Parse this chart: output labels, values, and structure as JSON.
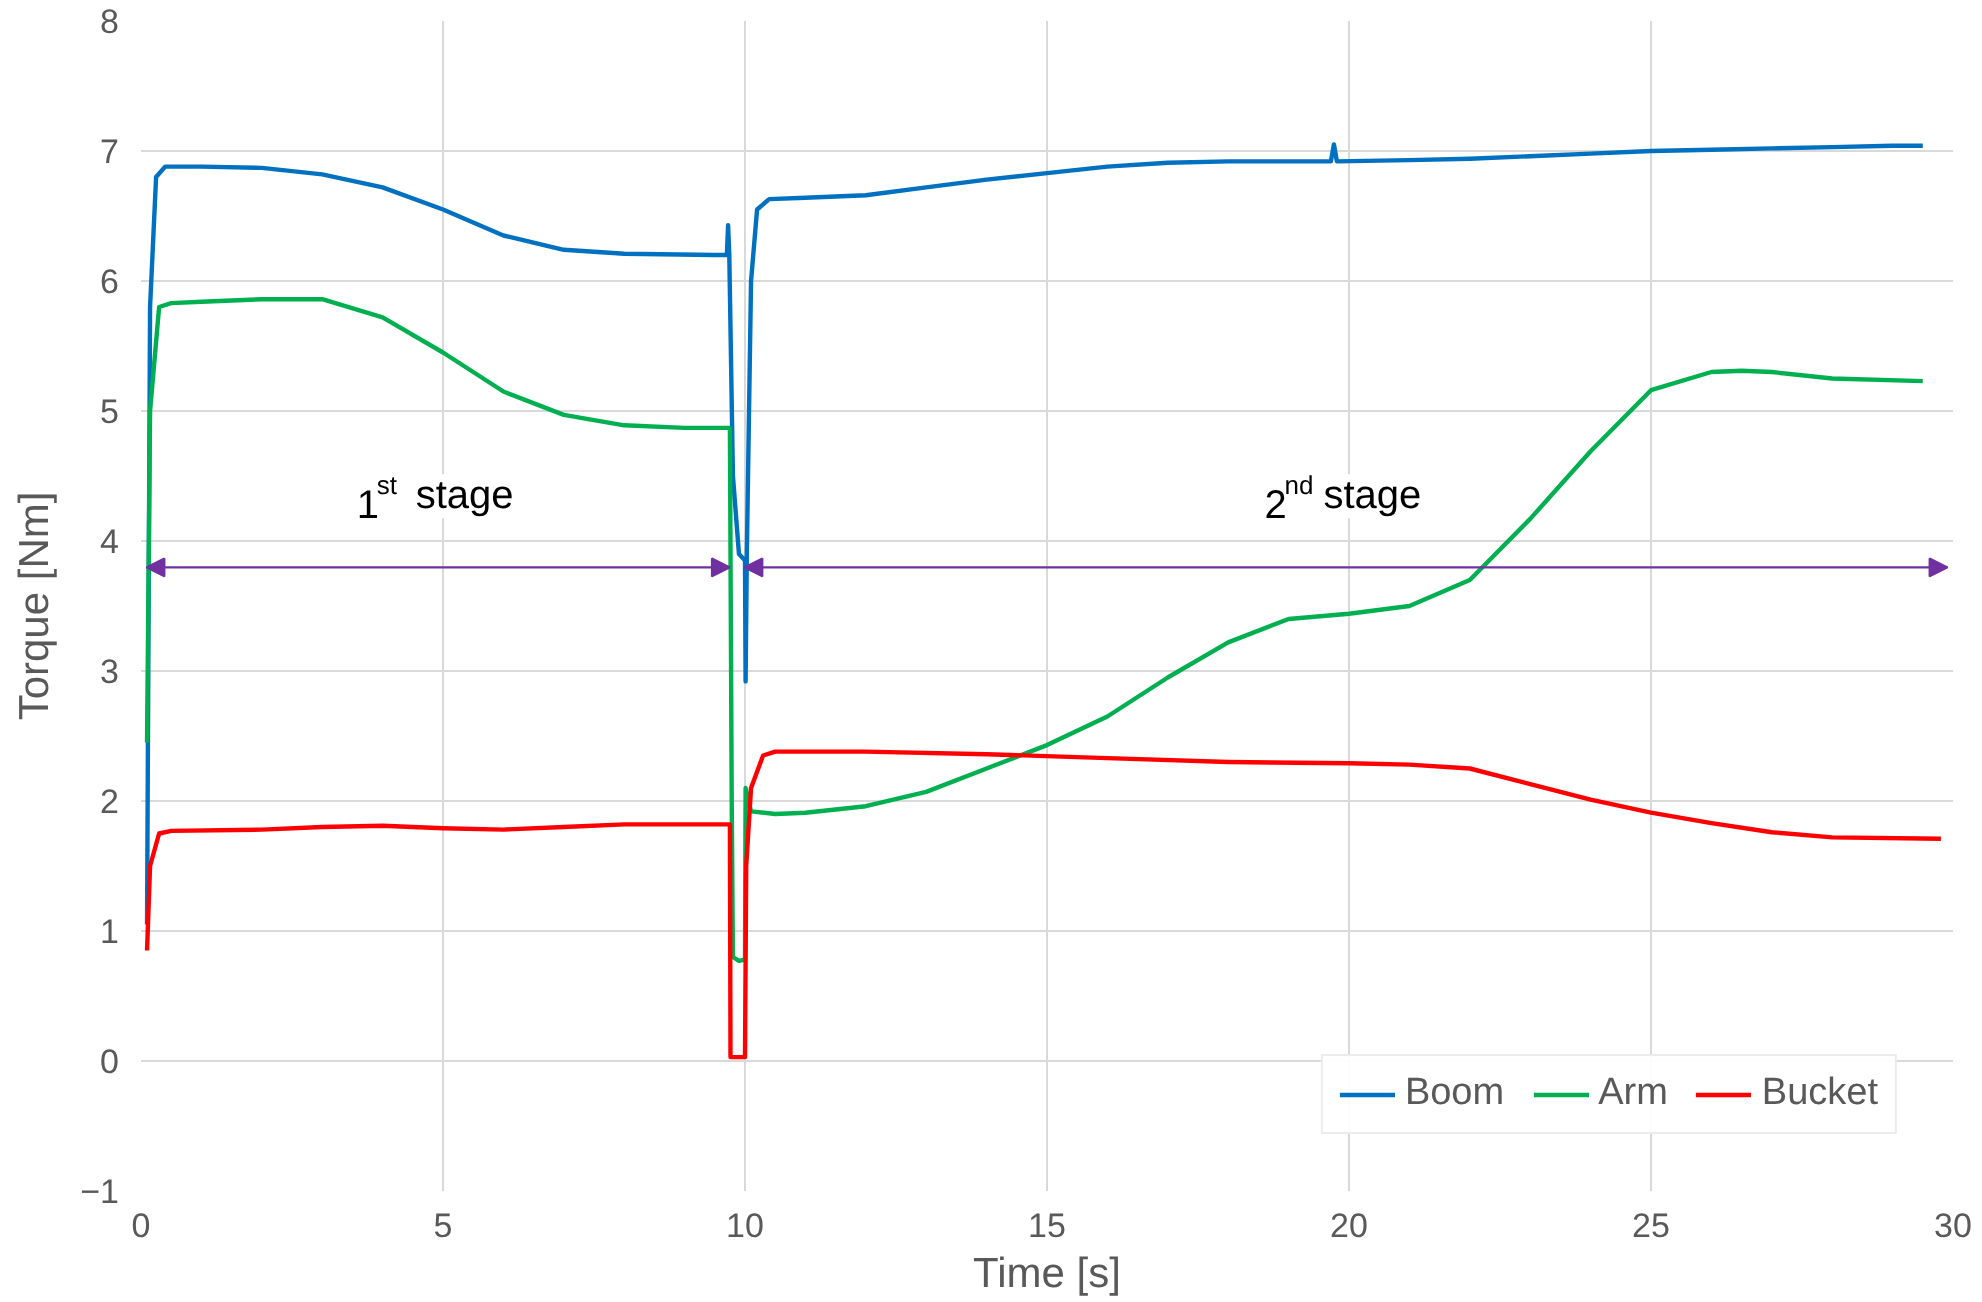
{
  "chart_data": {
    "type": "line",
    "xlabel": "Time [s]",
    "ylabel": "Torque [Nm]",
    "xlim": [
      0,
      30
    ],
    "ylim": [
      -1,
      8
    ],
    "xticks": [
      0,
      5,
      10,
      15,
      20,
      25,
      30
    ],
    "yticks": [
      -1,
      0,
      1,
      2,
      3,
      4,
      5,
      6,
      7,
      8
    ],
    "grid": true,
    "legend": "bottom right",
    "line_style": "solid",
    "series": [
      {
        "name": "Boom",
        "color": "#0070c0",
        "x": [
          0.1,
          0.15,
          0.25,
          0.4,
          1,
          2,
          3,
          4,
          5,
          6,
          7,
          8,
          9.5,
          9.7,
          9.72,
          9.74,
          9.8,
          9.9,
          10.0,
          10.01,
          10.03,
          10.1,
          10.2,
          10.4,
          11,
          12,
          13,
          14,
          15,
          16,
          17,
          18,
          19,
          19.7,
          19.75,
          19.8,
          21,
          22,
          23,
          24,
          25,
          26,
          27,
          28,
          29,
          29.5
        ],
        "values": [
          1.05,
          5.8,
          6.8,
          6.88,
          6.88,
          6.87,
          6.82,
          6.72,
          6.55,
          6.35,
          6.24,
          6.21,
          6.2,
          6.2,
          6.43,
          6.2,
          4.5,
          3.9,
          3.85,
          2.92,
          3.9,
          6.0,
          6.55,
          6.63,
          6.64,
          6.66,
          6.72,
          6.78,
          6.83,
          6.88,
          6.91,
          6.92,
          6.92,
          6.92,
          7.05,
          6.92,
          6.93,
          6.94,
          6.96,
          6.98,
          7.0,
          7.01,
          7.02,
          7.03,
          7.04,
          7.04
        ]
      },
      {
        "name": "Arm",
        "color": "#00b050",
        "x": [
          0.1,
          0.15,
          0.3,
          0.5,
          1,
          2,
          3,
          4,
          5,
          6,
          7,
          8,
          9,
          9.75,
          9.78,
          9.8,
          9.9,
          10.0,
          10.01,
          10.1,
          10.5,
          11,
          12,
          13,
          14,
          15,
          16,
          17,
          18,
          19,
          20,
          21,
          22,
          23,
          24,
          25,
          26,
          26.5,
          27,
          28,
          29.5
        ],
        "values": [
          2.45,
          5.0,
          5.8,
          5.83,
          5.84,
          5.86,
          5.86,
          5.72,
          5.45,
          5.15,
          4.97,
          4.89,
          4.87,
          4.87,
          2.0,
          0.8,
          0.77,
          0.78,
          2.1,
          1.92,
          1.9,
          1.91,
          1.96,
          2.07,
          2.25,
          2.43,
          2.65,
          2.95,
          3.22,
          3.4,
          3.44,
          3.5,
          3.7,
          4.17,
          4.69,
          5.16,
          5.3,
          5.31,
          5.3,
          5.25,
          5.23
        ]
      },
      {
        "name": "Bucket",
        "color": "#ff0000",
        "x": [
          0.1,
          0.15,
          0.3,
          0.5,
          2,
          3,
          4,
          5,
          6,
          7,
          8,
          9.75,
          9.76,
          10.0,
          10.02,
          10.1,
          10.3,
          10.5,
          12,
          14,
          16,
          18,
          20,
          21,
          22,
          23,
          24,
          25,
          26,
          27,
          28,
          29.8
        ],
        "values": [
          0.85,
          1.5,
          1.75,
          1.77,
          1.78,
          1.8,
          1.81,
          1.79,
          1.78,
          1.8,
          1.82,
          1.82,
          0.03,
          0.03,
          1.5,
          2.1,
          2.35,
          2.38,
          2.38,
          2.36,
          2.33,
          2.3,
          2.29,
          2.28,
          2.25,
          2.13,
          2.01,
          1.91,
          1.83,
          1.76,
          1.72,
          1.71
        ]
      }
    ],
    "annotations": [
      "1$^{st}$ stage",
      "2$^{nd}$ stage"
    ]
  }
}
